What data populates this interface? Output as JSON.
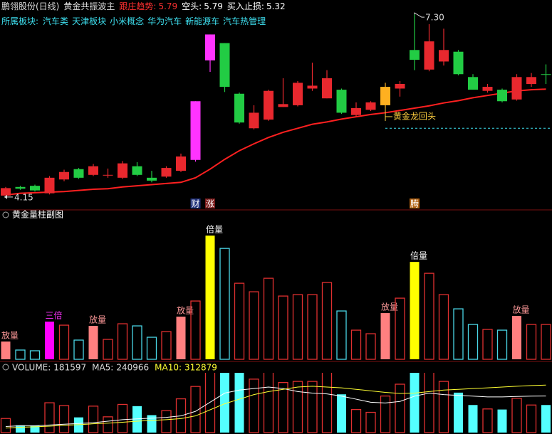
{
  "chart_data": [
    {
      "type": "candlestick",
      "title": "鹏翎股份(日线)",
      "indicator": "黄金共振波主",
      "stats": [
        {
          "label": "跟庄趋势:",
          "value": 5.79,
          "color": "#ff3030"
        },
        {
          "label": "空头:",
          "value": 5.79,
          "color": "#ffffff"
        },
        {
          "label": "买入止损:",
          "value": 5.32,
          "color": "#ffffff"
        }
      ],
      "sector_label": "所属板块:",
      "sectors": [
        "汽车类",
        "天津板块",
        "小米概念",
        "华为汽车",
        "新能源车",
        "汽车热管理"
      ],
      "open": [
        4.15,
        4.3,
        4.32,
        4.19,
        4.43,
        4.61,
        4.51,
        4.5,
        4.46,
        4.66,
        4.46,
        4.48,
        4.58,
        4.77,
        6.5,
        6.8,
        5.92,
        5.32,
        5.47,
        5.69,
        5.72,
        6.01,
        5.84,
        5.99,
        5.55,
        5.64,
        5.72,
        6.01,
        6.68,
        6.34,
        6.48,
        6.65,
        6.21,
        5.97,
        5.99,
        5.82,
        6.09,
        6.26
      ],
      "high": [
        4.3,
        4.32,
        4.34,
        4.49,
        4.6,
        4.63,
        4.7,
        4.62,
        4.75,
        4.73,
        4.58,
        4.66,
        4.88,
        5.79,
        6.95,
        6.8,
        5.94,
        5.72,
        5.99,
        6.19,
        6.14,
        6.46,
        6.33,
        6.01,
        5.77,
        5.79,
        6.11,
        6.14,
        7.3,
        7.13,
        7.05,
        6.68,
        6.26,
        6.09,
        6.01,
        6.26,
        6.28,
        6.43
      ],
      "low": [
        4.15,
        4.25,
        4.22,
        4.17,
        4.4,
        4.44,
        4.49,
        4.46,
        4.44,
        4.49,
        4.38,
        4.46,
        4.56,
        4.74,
        6.3,
        5.95,
        5.4,
        5.3,
        5.45,
        5.69,
        5.7,
        5.97,
        5.84,
        5.57,
        5.52,
        5.62,
        5.67,
        5.87,
        6.33,
        6.31,
        6.41,
        6.24,
        5.99,
        5.94,
        5.77,
        5.8,
        6.04,
        6.09
      ],
      "close": [
        4.28,
        4.27,
        4.24,
        4.46,
        4.56,
        4.46,
        4.66,
        4.51,
        4.71,
        4.51,
        4.41,
        4.63,
        4.83,
        5.79,
        6.95,
        6.04,
        5.42,
        5.59,
        5.97,
        5.74,
        6.11,
        6.06,
        6.19,
        5.59,
        5.67,
        5.77,
        6.04,
        6.09,
        6.51,
        6.83,
        6.68,
        6.26,
        5.99,
        6.04,
        5.79,
        6.21,
        6.21,
        6.25
      ],
      "colors": [
        "#e8282e",
        "#22cc44",
        "#22cc44",
        "#e8282e",
        "#e8282e",
        "#22cc44",
        "#e8282e",
        "#e8282e",
        "#e8282e",
        "#22cc44",
        "#22cc44",
        "#e8282e",
        "#e8282e",
        "#ff33ff",
        "#ff33ff",
        "#22cc44",
        "#22cc44",
        "#e8282e",
        "#e8282e",
        "#e8282e",
        "#e8282e",
        "#e8282e",
        "#e8282e",
        "#22cc44",
        "#e8282e",
        "#e8282e",
        "#ffb020",
        "#e8282e",
        "#22cc44",
        "#e8282e",
        "#e8282e",
        "#22cc44",
        "#22cc44",
        "#e8282e",
        "#22cc44",
        "#e8282e",
        "#e8282e",
        "#22cc44"
      ],
      "ma_values": [
        4.16,
        4.19,
        4.2,
        4.21,
        4.22,
        4.24,
        4.26,
        4.27,
        4.3,
        4.32,
        4.34,
        4.36,
        4.38,
        4.46,
        4.61,
        4.78,
        4.93,
        5.05,
        5.16,
        5.25,
        5.32,
        5.39,
        5.43,
        5.48,
        5.52,
        5.56,
        5.59,
        5.63,
        5.67,
        5.71,
        5.76,
        5.8,
        5.85,
        5.89,
        5.93,
        5.97,
        5.99,
        6.0
      ],
      "ma_color": "#ff2020",
      "events": [
        null,
        null,
        null,
        null,
        null,
        null,
        null,
        null,
        null,
        null,
        null,
        null,
        null,
        "财",
        "涨",
        null,
        null,
        null,
        null,
        null,
        null,
        null,
        null,
        null,
        null,
        null,
        null,
        null,
        "腾",
        null,
        null,
        null,
        null,
        null,
        null,
        null,
        null,
        null
      ],
      "low_mark": 4.15,
      "high_mark": {
        "value": 7.3,
        "label": "7.30"
      },
      "annotation": "黄金龙回头",
      "ylim": [
        4.05,
        7.45
      ]
    },
    {
      "type": "bar",
      "title": "黄金量柱副图",
      "values": [
        92650,
        48200,
        44500,
        196400,
        177900,
        100100,
        174200,
        103800,
        185300,
        174200,
        114900,
        144500,
        222400,
        303900,
        644800,
        578100,
        396500,
        352100,
        422500,
        329800,
        337200,
        337200,
        400200,
        252000,
        151900,
        133400,
        240900,
        318700,
        507700,
        448400,
        337200,
        263100,
        181600,
        155700,
        151900,
        226100,
        181600,
        181597
      ],
      "styles": [
        "salmon",
        "hollow-cyan",
        "hollow-cyan",
        "magenta",
        "hollow-red",
        "hollow-cyan",
        "salmon",
        "hollow-red",
        "hollow-red",
        "hollow-cyan",
        "hollow-cyan",
        "hollow-red",
        "salmon",
        "hollow-red",
        "yellow",
        "hollow-cyan",
        "hollow-red",
        "hollow-red",
        "hollow-red",
        "hollow-red",
        "hollow-red",
        "hollow-red",
        "hollow-red",
        "hollow-cyan",
        "hollow-red",
        "hollow-red",
        "salmon",
        "hollow-red",
        "yellow",
        "hollow-red",
        "hollow-red",
        "hollow-cyan",
        "hollow-cyan",
        "hollow-red",
        "hollow-cyan",
        "salmon",
        "hollow-red",
        "hollow-red"
      ],
      "signals": [
        "放量",
        null,
        null,
        "三倍",
        null,
        null,
        "放量",
        null,
        null,
        null,
        null,
        null,
        "放量",
        null,
        "倍量",
        null,
        null,
        null,
        null,
        null,
        null,
        null,
        null,
        null,
        null,
        null,
        "放量",
        null,
        "倍量",
        null,
        null,
        null,
        null,
        null,
        null,
        "放量",
        null,
        null
      ],
      "ylim": [
        0,
        690000
      ]
    },
    {
      "type": "volume",
      "volume_label": "VOLUME:",
      "series": [
        {
          "name": "MA5:",
          "color": "#ffffff",
          "values": [
            40000,
            45000,
            45000,
            50000,
            55000,
            60000,
            65000,
            75000,
            85000,
            90000,
            95000,
            100000,
            110000,
            140000,
            200000,
            260000,
            280000,
            290000,
            300000,
            290000,
            270000,
            260000,
            255000,
            240000,
            220000,
            200000,
            195000,
            205000,
            240000,
            260000,
            250000,
            245000,
            240000,
            235000,
            235000,
            238000,
            240000,
            240966
          ]
        },
        {
          "name": "MA10:",
          "color": "#ffff33",
          "values": [
            30000,
            35000,
            38000,
            42000,
            48000,
            52000,
            58000,
            62000,
            68000,
            75000,
            80000,
            85000,
            92000,
            110000,
            150000,
            190000,
            220000,
            250000,
            270000,
            285000,
            300000,
            305000,
            300000,
            295000,
            285000,
            275000,
            265000,
            258000,
            260000,
            270000,
            280000,
            285000,
            290000,
            295000,
            300000,
            305000,
            310000,
            312879
          ]
        }
      ],
      "ylim": [
        0,
        450000
      ]
    }
  ]
}
